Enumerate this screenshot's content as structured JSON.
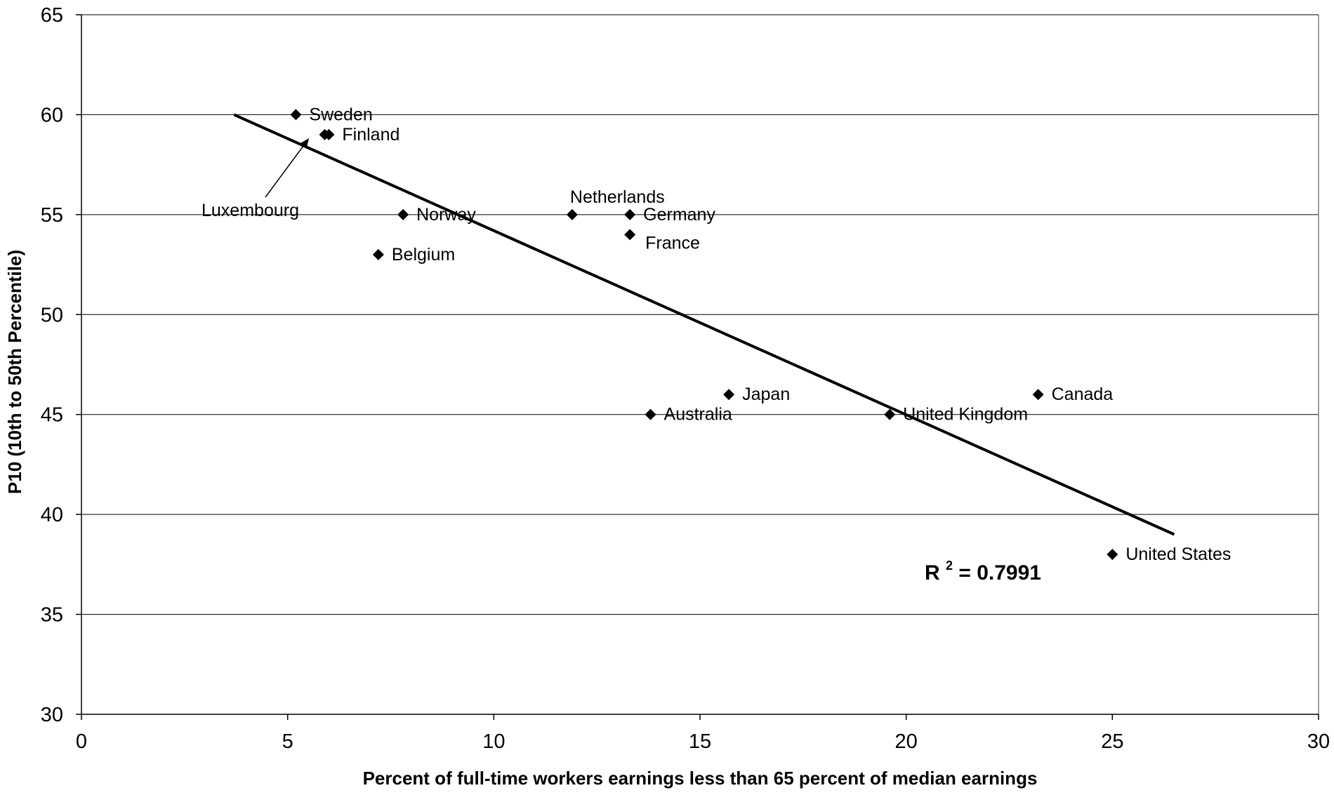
{
  "chart_data": {
    "type": "scatter",
    "title": "",
    "xlabel": "Percent of full-time workers earnings less than 65 percent of median earnings",
    "ylabel": "P10 (10th to 50th Percentile)",
    "xlim": [
      0,
      30
    ],
    "ylim": [
      30,
      65
    ],
    "xticks": [
      0,
      5,
      10,
      15,
      20,
      25,
      30
    ],
    "yticks": [
      30,
      35,
      40,
      45,
      50,
      55,
      60,
      65
    ],
    "grid": "horizontal",
    "marker": "diamond",
    "points": [
      {
        "label": "Sweden",
        "x": 5.2,
        "y": 60
      },
      {
        "label": "Finland",
        "x": 6.0,
        "y": 59
      },
      {
        "label": "Luxembourg",
        "x": 5.9,
        "y": 59
      },
      {
        "label": "Norway",
        "x": 7.8,
        "y": 55
      },
      {
        "label": "Belgium",
        "x": 7.2,
        "y": 53
      },
      {
        "label": "Netherlands",
        "x": 11.9,
        "y": 55
      },
      {
        "label": "Germany",
        "x": 13.3,
        "y": 55
      },
      {
        "label": "France",
        "x": 13.3,
        "y": 54
      },
      {
        "label": "Japan",
        "x": 15.7,
        "y": 46
      },
      {
        "label": "Australia",
        "x": 13.8,
        "y": 45
      },
      {
        "label": "United Kingdom",
        "x": 19.6,
        "y": 45
      },
      {
        "label": "Canada",
        "x": 23.2,
        "y": 46
      },
      {
        "label": "United States",
        "x": 25.0,
        "y": 38
      }
    ],
    "trendline": {
      "type": "linear",
      "x": [
        3.7,
        26.5
      ],
      "y": [
        60.0,
        39.0
      ],
      "r2_prefix": "R",
      "r2_exponent": "2",
      "r2_value": " = 0.7991"
    }
  }
}
